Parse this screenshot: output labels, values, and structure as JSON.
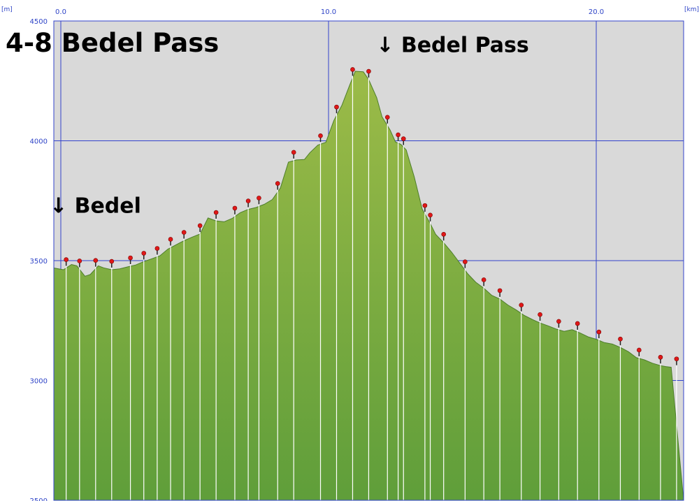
{
  "chart_data": {
    "type": "area",
    "title": "4-8 Bedel Pass",
    "x_unit": "[km]",
    "y_unit": "[m]",
    "xlim": [
      0,
      22.8
    ],
    "ylim": [
      2500,
      4500
    ],
    "x_ticks": [
      0,
      10,
      20
    ],
    "x_tick_labels": [
      "0.0",
      "10.0",
      "20.0"
    ],
    "y_ticks": [
      2500,
      3000,
      3500,
      4000,
      4500
    ],
    "y_tick_labels": [
      "2500",
      "3000",
      "3500",
      "4000",
      "4500"
    ],
    "grid": true,
    "colors": {
      "plot_background": "#d9d9d9",
      "grid": "#3344cc",
      "fill_top": "#9cbb48",
      "fill_bottom": "#5f9e3a",
      "waypoint_marker": "#e01818"
    },
    "profile": {
      "x": [
        -0.3,
        0.1,
        0.4,
        0.6,
        0.9,
        1.1,
        1.4,
        1.6,
        1.9,
        2.2,
        2.5,
        2.8,
        3.1,
        3.4,
        3.7,
        4.0,
        4.3,
        4.6,
        4.9,
        5.2,
        5.5,
        5.8,
        6.1,
        6.4,
        6.7,
        7.0,
        7.3,
        7.6,
        7.9,
        8.2,
        8.5,
        8.8,
        9.1,
        9.3,
        9.6,
        9.9,
        10.2,
        10.5,
        10.8,
        11.0,
        11.3,
        11.5,
        11.8,
        12.0,
        12.3,
        12.5,
        12.7,
        12.9,
        13.2,
        13.5,
        13.8,
        14.0,
        14.3,
        14.6,
        14.9,
        15.2,
        15.5,
        15.8,
        16.1,
        16.4,
        16.7,
        17.0,
        17.3,
        17.6,
        17.9,
        18.2,
        18.5,
        18.8,
        19.1,
        19.4,
        19.7,
        20.0,
        20.3,
        20.6,
        20.9,
        21.2,
        21.5,
        21.8,
        22.1,
        22.4,
        22.6,
        22.8
      ],
      "y": [
        3470,
        3462,
        3484,
        3478,
        3435,
        3442,
        3478,
        3470,
        3462,
        3466,
        3474,
        3482,
        3496,
        3508,
        3520,
        3548,
        3566,
        3583,
        3598,
        3611,
        3678,
        3666,
        3662,
        3676,
        3700,
        3714,
        3722,
        3735,
        3755,
        3803,
        3911,
        3920,
        3922,
        3950,
        3982,
        3994,
        4085,
        4148,
        4235,
        4290,
        4288,
        4255,
        4180,
        4100,
        4045,
        3995,
        3985,
        3962,
        3850,
        3715,
        3655,
        3610,
        3575,
        3535,
        3490,
        3445,
        3410,
        3385,
        3355,
        3340,
        3315,
        3295,
        3272,
        3255,
        3240,
        3228,
        3215,
        3205,
        3212,
        3198,
        3182,
        3172,
        3158,
        3152,
        3138,
        3120,
        3095,
        3086,
        3072,
        3062,
        3058,
        3055
      ]
    },
    "waypoint_x": [
      0.2,
      0.7,
      1.3,
      1.9,
      2.6,
      3.1,
      3.6,
      4.1,
      4.6,
      5.2,
      5.8,
      6.5,
      7.0,
      7.4,
      8.1,
      8.7,
      9.7,
      10.3,
      10.9,
      11.5,
      12.2,
      12.6,
      12.8,
      13.6,
      13.8,
      14.3,
      15.1,
      15.8,
      16.4,
      17.2,
      17.9,
      18.6,
      19.3,
      20.1,
      20.9,
      21.6,
      22.4,
      23.0
    ],
    "annotations": [
      {
        "text": "↓ Bedel",
        "x": 0.0,
        "y": 3700
      },
      {
        "text": "↓ Bedel Pass",
        "x": 12.2,
        "y": 4370
      }
    ]
  }
}
